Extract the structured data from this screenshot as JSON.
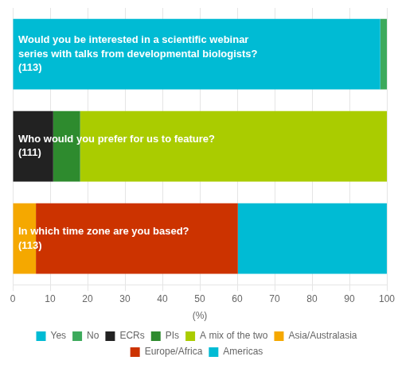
{
  "chart_data": {
    "type": "bar",
    "orientation": "horizontal",
    "stacked": true,
    "categories": [
      "Would you be interested in a scientific webinar\nseries with talks from developmental biologists?\n(113)",
      "Who would you prefer for us to feature?\n(111)",
      "In which time zone are you based?\n(113)"
    ],
    "series": [
      {
        "name": "Yes",
        "color": "#00BBD4",
        "values": [
          98.23,
          null,
          null
        ]
      },
      {
        "name": "No",
        "color": "#3DAA5C",
        "values": [
          1.77,
          null,
          null
        ]
      },
      {
        "name": "ECRs",
        "color": "#222222",
        "values": [
          null,
          10.81,
          null
        ]
      },
      {
        "name": "PIs",
        "color": "#2E8B2E",
        "values": [
          null,
          7.21,
          null
        ]
      },
      {
        "name": "A mix of the two",
        "color": "#AACC00",
        "values": [
          null,
          81.98,
          null
        ]
      },
      {
        "name": "Asia/Australasia",
        "color": "#F5A800",
        "values": [
          null,
          null,
          6.19
        ]
      },
      {
        "name": "Europe/Africa",
        "color": "#CC3300",
        "values": [
          null,
          null,
          53.98
        ]
      },
      {
        "name": "Americas",
        "color": "#00BBD4",
        "values": [
          null,
          null,
          39.82
        ]
      }
    ],
    "xlabel": "(%)",
    "xlim": [
      0,
      100
    ],
    "xticks": [
      0,
      10,
      20,
      30,
      40,
      50,
      60,
      70,
      80,
      90,
      100
    ],
    "grid": true,
    "legend": "bottom",
    "tick_labels": "x"
  }
}
